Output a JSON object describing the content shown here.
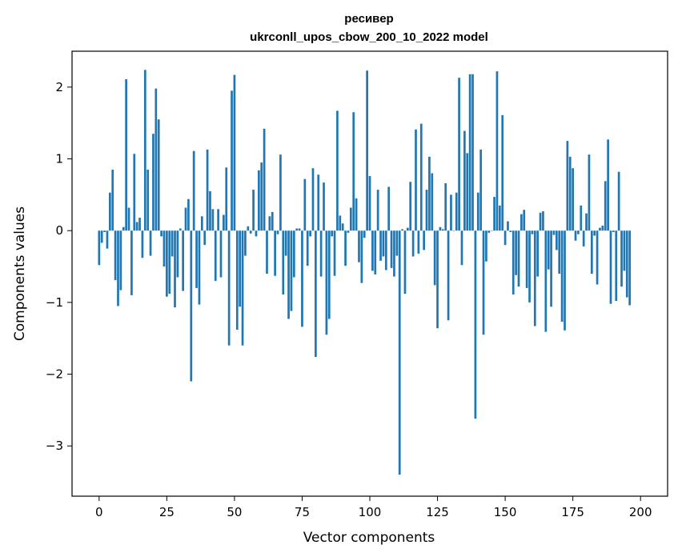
{
  "chart_data": {
    "type": "bar",
    "title": "ресивер",
    "subtitle": "ukrconll_upos_cbow_200_10_2022 model",
    "xlabel": "Vector components",
    "ylabel": "Components values",
    "xlim": [
      -10,
      210
    ],
    "ylim": [
      -3.7,
      2.5
    ],
    "xticks": [
      0,
      25,
      50,
      75,
      100,
      125,
      150,
      175,
      200
    ],
    "yticks": [
      -3,
      -2,
      -1,
      0,
      1,
      2
    ],
    "ytick_labels": [
      "−3",
      "−2",
      "−1",
      "0",
      "1",
      "2"
    ],
    "grid": false,
    "bar_color": "#1f77b4",
    "values": [
      -0.48,
      -0.17,
      -0.02,
      -0.25,
      0.53,
      0.85,
      -0.69,
      -1.05,
      -0.83,
      0.05,
      2.11,
      0.32,
      -0.9,
      1.07,
      0.12,
      0.18,
      -0.38,
      2.24,
      0.85,
      -0.35,
      1.35,
      1.98,
      1.55,
      -0.08,
      -0.5,
      -0.92,
      -0.88,
      -0.36,
      -1.07,
      -0.65,
      0.03,
      -0.84,
      0.32,
      0.44,
      -2.1,
      1.11,
      -0.8,
      -1.03,
      0.2,
      -0.2,
      1.13,
      0.55,
      0.3,
      -0.7,
      0.3,
      -0.65,
      0.22,
      0.88,
      -1.6,
      1.95,
      2.17,
      -1.38,
      -1.06,
      -1.6,
      -0.35,
      0.06,
      -0.04,
      0.57,
      -0.08,
      0.84,
      0.95,
      1.42,
      -0.6,
      0.2,
      0.26,
      -0.63,
      -0.05,
      1.06,
      -0.89,
      -0.35,
      -1.23,
      -1.12,
      -0.65,
      0.03,
      0.03,
      -1.34,
      0.72,
      -0.49,
      -0.08,
      0.87,
      -1.76,
      0.78,
      -0.64,
      0.67,
      -1.45,
      -1.23,
      -0.08,
      -0.63,
      1.67,
      0.21,
      0.1,
      -0.49,
      -0.03,
      0.32,
      1.65,
      0.45,
      -0.44,
      -0.73,
      -0.1,
      2.23,
      0.76,
      -0.56,
      -0.61,
      0.57,
      -0.42,
      -0.36,
      -0.55,
      0.61,
      -0.52,
      -0.64,
      -0.35,
      -3.4,
      0.02,
      -0.88,
      0.04,
      0.68,
      -0.36,
      1.41,
      -0.32,
      1.49,
      -0.27,
      0.57,
      1.03,
      0.8,
      -0.76,
      -1.36,
      0.05,
      0.02,
      0.66,
      -1.25,
      0.5,
      0.0,
      0.53,
      2.13,
      -0.48,
      1.39,
      1.08,
      2.18,
      2.18,
      -2.62,
      0.53,
      1.13,
      -1.45,
      -0.43,
      -0.03,
      0.0,
      0.47,
      2.22,
      0.35,
      1.61,
      -0.2,
      0.13,
      -0.02,
      -0.89,
      -0.62,
      -0.78,
      0.23,
      0.29,
      -0.8,
      -1.0,
      -0.05,
      -1.33,
      -0.64,
      0.25,
      0.27,
      -1.41,
      -0.54,
      -1.06,
      -0.06,
      -0.27,
      -0.6,
      -1.27,
      -1.39,
      1.25,
      1.03,
      0.87,
      -0.14,
      -0.05,
      0.35,
      -0.22,
      0.24,
      1.06,
      -0.6,
      -0.07,
      -0.75,
      0.04,
      0.07,
      0.69,
      1.27,
      -1.02,
      -0.02,
      -0.98,
      0.82,
      -0.78,
      -0.56,
      -0.93,
      -1.04
    ]
  }
}
